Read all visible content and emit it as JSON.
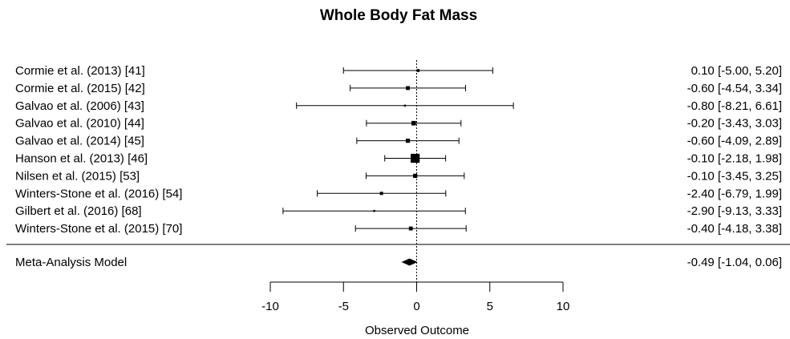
{
  "chart_data": {
    "type": "forest",
    "title": "Whole Body Fat Mass",
    "xlabel": "Observed Outcome",
    "xlim": [
      -10,
      10
    ],
    "x_ticks": [
      -10,
      -5,
      0,
      5,
      10
    ],
    "x_tick_labels": [
      "-10",
      "-5",
      "0",
      "5",
      "10"
    ],
    "reference_line": 0,
    "grid": false,
    "studies": [
      {
        "label": "Cormie et al. (2013) [41]",
        "estimate": 0.1,
        "lower": -5.0,
        "upper": 5.2,
        "ci_text": "0.10 [-5.00, 5.20]",
        "weight": 0.9
      },
      {
        "label": "Cormie et al. (2015) [42]",
        "estimate": -0.6,
        "lower": -4.54,
        "upper": 3.34,
        "ci_text": "-0.60 [-4.54, 3.34]",
        "weight": 1.2
      },
      {
        "label": "Galvao et al. (2006) [43]",
        "estimate": -0.8,
        "lower": -8.21,
        "upper": 6.61,
        "ci_text": "-0.80 [-8.21, 6.61]",
        "weight": 0.6
      },
      {
        "label": "Galvao et al. (2010) [44]",
        "estimate": -0.2,
        "lower": -3.43,
        "upper": 3.03,
        "ci_text": "-0.20 [-3.43, 3.03]",
        "weight": 1.4
      },
      {
        "label": "Galvao et al. (2014) [45]",
        "estimate": -0.6,
        "lower": -4.09,
        "upper": 2.89,
        "ci_text": "-0.60 [-4.09, 2.89]",
        "weight": 1.3
      },
      {
        "label": "Hanson et al. (2013) [46]",
        "estimate": -0.1,
        "lower": -2.18,
        "upper": 1.98,
        "ci_text": "-0.10 [-2.18, 1.98]",
        "weight": 2.8
      },
      {
        "label": "Nilsen et al. (2015) [53]",
        "estimate": -0.1,
        "lower": -3.45,
        "upper": 3.25,
        "ci_text": "-0.10 [-3.45, 3.25]",
        "weight": 1.3
      },
      {
        "label": "Winters-Stone et al. (2016) [54]",
        "estimate": -2.4,
        "lower": -6.79,
        "upper": 1.99,
        "ci_text": "-2.40 [-6.79, 1.99]",
        "weight": 1.0
      },
      {
        "label": "Gilbert et al. (2016) [68]",
        "estimate": -2.9,
        "lower": -9.13,
        "upper": 3.33,
        "ci_text": "-2.90 [-9.13, 3.33]",
        "weight": 0.6
      },
      {
        "label": "Winters-Stone et al. (2015) [70]",
        "estimate": -0.4,
        "lower": -4.18,
        "upper": 3.38,
        "ci_text": "-0.40 [-4.18, 3.38]",
        "weight": 1.2
      }
    ],
    "summary": {
      "label": "Meta-Analysis Model",
      "estimate": -0.49,
      "lower": -1.04,
      "upper": 0.06,
      "ci_text": "-0.49 [-1.04, 0.06]"
    }
  }
}
